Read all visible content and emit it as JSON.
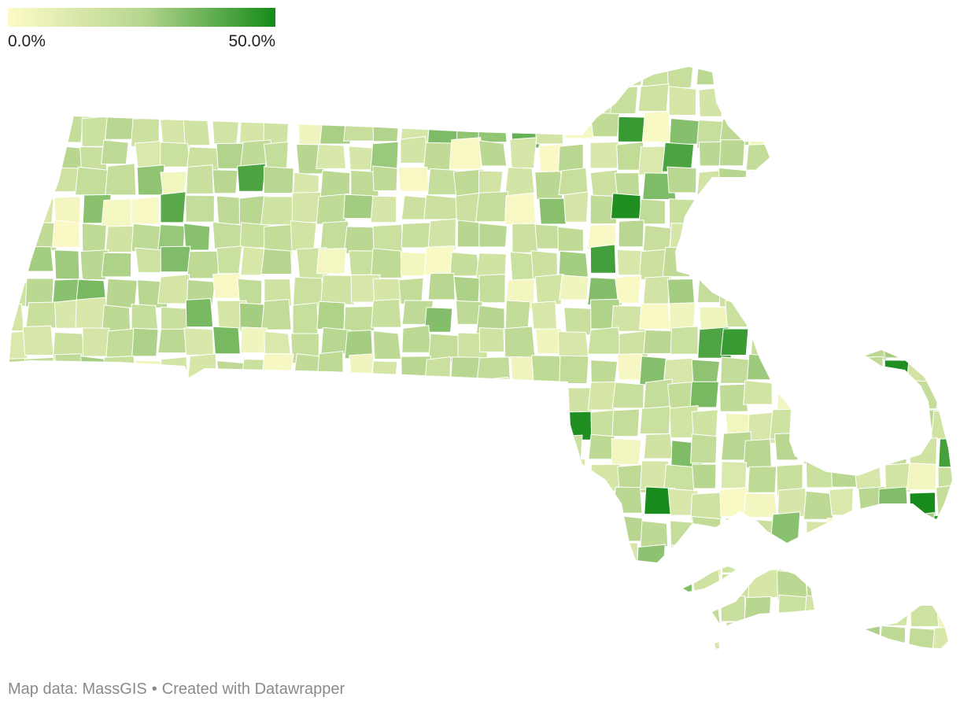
{
  "legend": {
    "min_label": "0.0%",
    "max_label": "50.0%",
    "min_color": "#fdfbc8",
    "mid_color": "#b7d68f",
    "max_color": "#158a1a"
  },
  "footer": {
    "source": "Map data: MassGIS",
    "separator": "•",
    "credit": "Created with Datawrapper"
  },
  "map": {
    "region": "Massachusetts",
    "unit_type": "municipalities",
    "color_scale": [
      "#fdfbc8",
      "#b7d68f",
      "#158a1a"
    ],
    "value_range": [
      0,
      50
    ],
    "border_color": "#ffffff"
  }
}
